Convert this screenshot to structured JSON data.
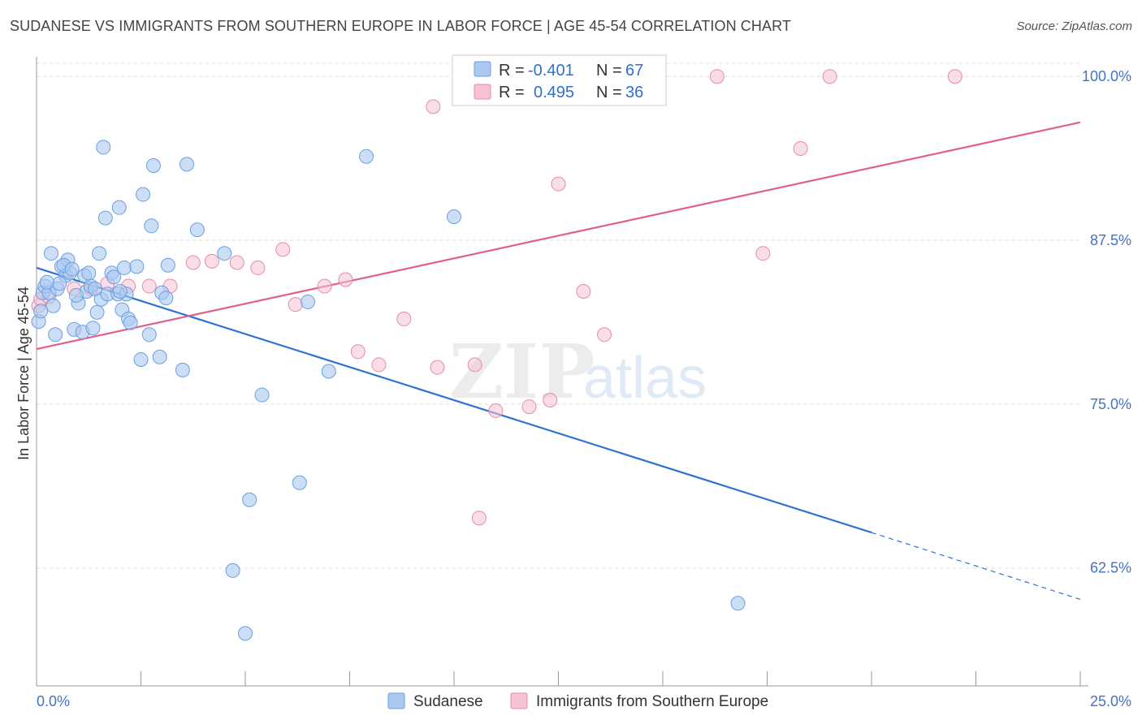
{
  "title": "SUDANESE VS IMMIGRANTS FROM SOUTHERN EUROPE IN LABOR FORCE | AGE 45-54 CORRELATION CHART",
  "source": "Source: ZipAtlas.com",
  "watermark": {
    "zip": "ZIP",
    "atlas": "atlas"
  },
  "colors": {
    "blue_fill": "#aac8f0",
    "blue_stroke": "#6b9fe0",
    "blue_line": "#2e72d2",
    "pink_fill": "#f6c3d3",
    "pink_stroke": "#e88aa8",
    "pink_line": "#e0608a",
    "grid": "#dddddd",
    "tick_text": "#4472c4"
  },
  "legend": {
    "rows": [
      {
        "r_label": "R =",
        "r_value": "-0.401",
        "n_label": "N =",
        "n_value": "67"
      },
      {
        "r_label": "R =",
        "r_value": "0.495",
        "n_label": "N =",
        "n_value": "36"
      }
    ]
  },
  "bottom_legend": [
    "Sudanese",
    "Immigrants from Southern Europe"
  ],
  "chart_data": {
    "type": "scatter",
    "xlabel": "",
    "ylabel": "In Labor Force | Age 45-54",
    "xlim": [
      0,
      25
    ],
    "ylim": [
      53.5,
      101.5
    ],
    "x_tick_labels": [
      "0.0%",
      "25.0%"
    ],
    "y_ticks": [
      62.5,
      75.0,
      87.5,
      100.0
    ],
    "y_tick_labels": [
      "62.5%",
      "75.0%",
      "87.5%",
      "100.0%"
    ],
    "grid": "horizontal dashed",
    "series": [
      {
        "name": "Sudanese",
        "r": -0.401,
        "n": 67,
        "trend": {
          "x0": 0,
          "y0": 85.4,
          "x1": 20,
          "y1": 65.2,
          "dashed_to_x": 25,
          "dashed_to_y": 60.1
        },
        "points": [
          [
            0.05,
            81.3
          ],
          [
            0.1,
            82.1
          ],
          [
            0.15,
            83.5
          ],
          [
            0.2,
            84.0
          ],
          [
            0.3,
            83.5
          ],
          [
            0.35,
            86.5
          ],
          [
            0.4,
            82.5
          ],
          [
            0.45,
            80.3
          ],
          [
            0.6,
            85.5
          ],
          [
            0.7,
            84.8
          ],
          [
            0.75,
            86.0
          ],
          [
            0.8,
            85.0
          ],
          [
            0.9,
            80.7
          ],
          [
            1.0,
            82.7
          ],
          [
            1.1,
            80.5
          ],
          [
            1.15,
            84.8
          ],
          [
            1.2,
            83.6
          ],
          [
            1.3,
            84.0
          ],
          [
            1.35,
            80.8
          ],
          [
            1.45,
            82.0
          ],
          [
            1.5,
            86.5
          ],
          [
            1.55,
            83.0
          ],
          [
            1.6,
            94.6
          ],
          [
            1.65,
            89.2
          ],
          [
            1.7,
            83.4
          ],
          [
            1.8,
            85.0
          ],
          [
            1.85,
            84.7
          ],
          [
            1.95,
            83.4
          ],
          [
            1.98,
            90.0
          ],
          [
            2.05,
            82.2
          ],
          [
            2.1,
            85.4
          ],
          [
            2.15,
            83.4
          ],
          [
            2.2,
            81.5
          ],
          [
            2.25,
            81.2
          ],
          [
            2.4,
            85.5
          ],
          [
            2.5,
            78.4
          ],
          [
            2.55,
            91.0
          ],
          [
            2.7,
            80.3
          ],
          [
            2.75,
            88.6
          ],
          [
            2.8,
            93.2
          ],
          [
            2.95,
            78.6
          ],
          [
            3.0,
            83.5
          ],
          [
            3.1,
            83.1
          ],
          [
            3.15,
            85.6
          ],
          [
            3.5,
            77.6
          ],
          [
            3.6,
            93.3
          ],
          [
            3.85,
            88.3
          ],
          [
            4.5,
            86.5
          ],
          [
            4.7,
            62.3
          ],
          [
            5.0,
            57.5
          ],
          [
            5.1,
            67.7
          ],
          [
            5.4,
            75.7
          ],
          [
            6.3,
            69.0
          ],
          [
            6.5,
            82.8
          ],
          [
            7.0,
            77.5
          ],
          [
            7.9,
            93.9
          ],
          [
            10.0,
            89.3
          ],
          [
            16.8,
            59.8
          ],
          [
            0.5,
            83.8
          ],
          [
            0.55,
            84.2
          ],
          [
            1.25,
            85.0
          ],
          [
            0.25,
            84.3
          ],
          [
            0.65,
            85.6
          ],
          [
            0.85,
            85.3
          ],
          [
            1.4,
            83.8
          ],
          [
            2.0,
            83.6
          ],
          [
            0.95,
            83.3
          ]
        ]
      },
      {
        "name": "Immigrants from Southern Europe",
        "r": 0.495,
        "n": 36,
        "trend": {
          "x0": 0,
          "y0": 79.2,
          "x1": 25,
          "y1": 96.5
        },
        "points": [
          [
            0.05,
            82.5
          ],
          [
            0.1,
            83.0
          ],
          [
            0.3,
            83.2
          ],
          [
            0.9,
            83.8
          ],
          [
            1.3,
            83.8
          ],
          [
            1.7,
            84.2
          ],
          [
            2.2,
            84.0
          ],
          [
            2.7,
            84.0
          ],
          [
            3.2,
            84.0
          ],
          [
            3.75,
            85.8
          ],
          [
            4.2,
            85.9
          ],
          [
            4.8,
            85.8
          ],
          [
            5.3,
            85.4
          ],
          [
            5.9,
            86.8
          ],
          [
            6.2,
            82.6
          ],
          [
            6.9,
            84.0
          ],
          [
            7.4,
            84.5
          ],
          [
            7.7,
            79.0
          ],
          [
            8.2,
            78.0
          ],
          [
            8.8,
            81.5
          ],
          [
            9.6,
            77.8
          ],
          [
            9.5,
            97.7
          ],
          [
            10.5,
            78.0
          ],
          [
            10.6,
            66.3
          ],
          [
            11.0,
            74.5
          ],
          [
            11.8,
            74.8
          ],
          [
            12.3,
            75.3
          ],
          [
            12.5,
            91.8
          ],
          [
            13.1,
            83.6
          ],
          [
            13.6,
            80.3
          ],
          [
            14.0,
            100.0
          ],
          [
            16.3,
            100.0
          ],
          [
            17.4,
            86.5
          ],
          [
            18.3,
            94.5
          ],
          [
            19.0,
            100.0
          ],
          [
            22.0,
            100.0
          ]
        ]
      }
    ]
  }
}
